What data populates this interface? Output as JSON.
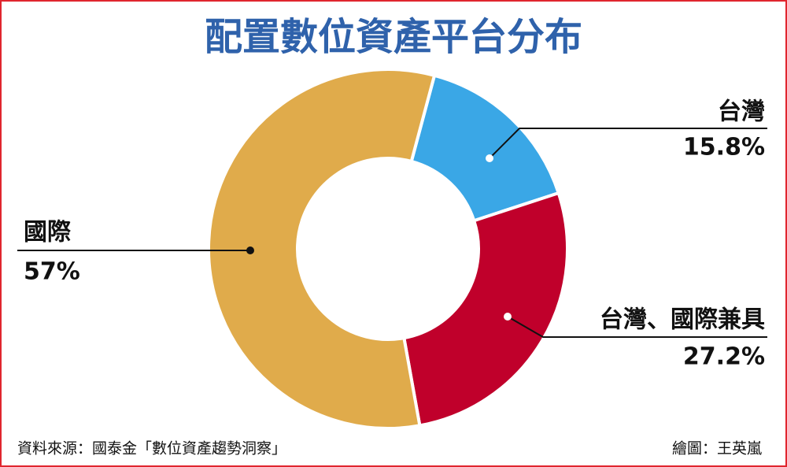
{
  "chart_data": {
    "type": "donut",
    "title": "配置數位資產平台分布",
    "categories": [
      "台灣",
      "台灣、國際兼具",
      "國際"
    ],
    "values": [
      15.8,
      27.2,
      57
    ],
    "value_labels": [
      "15.8%",
      "27.2%",
      "57%"
    ],
    "colors": [
      "#3aa7e6",
      "#c0002b",
      "#e0ab4b"
    ],
    "source": "資料來源：國泰金「數位資產趨勢洞察」",
    "credit": "繪圖：王英嵐"
  }
}
